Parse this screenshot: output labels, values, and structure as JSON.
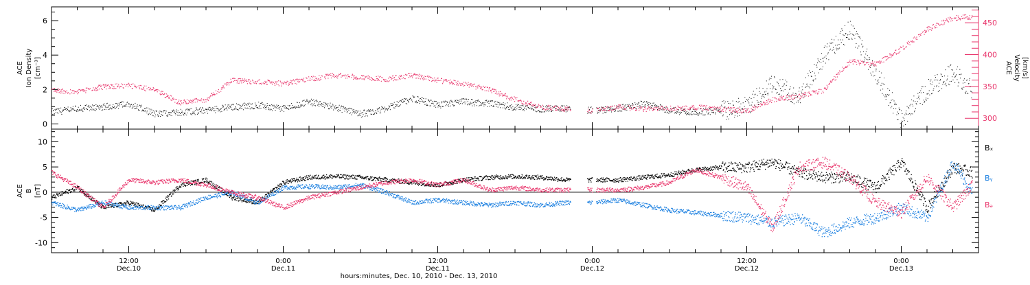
{
  "colors": {
    "density": "#000000",
    "velocity": "#e8336a",
    "bx": "#000000",
    "by": "#1a7fe0",
    "bz": "#e8336a",
    "axis": "#000000"
  },
  "xaxis": {
    "title": "hours:minutes, Dec. 10, 2010 - Dec. 13, 2010",
    "range_hours": [
      0,
      72
    ],
    "ticks": [
      {
        "hour": 6,
        "time": "12:00",
        "day": "Dec.10"
      },
      {
        "hour": 18,
        "time": "0:00",
        "day": "Dec.11"
      },
      {
        "hour": 30,
        "time": "12:00",
        "day": "Dec.11"
      },
      {
        "hour": 42,
        "time": "0:00",
        "day": "Dec.12"
      },
      {
        "hour": 54,
        "time": "12:00",
        "day": "Dec.12"
      },
      {
        "hour": 66,
        "time": "0:00",
        "day": "Dec.13"
      }
    ]
  },
  "chart_data": [
    {
      "type": "scatter",
      "panel": "top",
      "left_ylabel": [
        "ACE",
        "Ion Density",
        "[cm⁻³]"
      ],
      "right_ylabel": [
        "ACE",
        "Velocity",
        "[km/s]"
      ],
      "ylim_left": [
        -0.3,
        6.8
      ],
      "ylim_right": [
        283,
        475
      ],
      "left_ticks": [
        "0",
        "2",
        "4",
        "6"
      ],
      "right_ticks": [
        "300",
        "350",
        "400",
        "450"
      ],
      "data_gaps_hours": [
        [
          40.3,
          41.6
        ],
        [
          42.0,
          42.3
        ]
      ],
      "x_hours": [
        0,
        2,
        4,
        6,
        8,
        10,
        12,
        14,
        16,
        18,
        20,
        22,
        24,
        26,
        28,
        30,
        32,
        34,
        36,
        38,
        40,
        42,
        44,
        46,
        48,
        50,
        52,
        54,
        56,
        58,
        60,
        62,
        64,
        66,
        68,
        70,
        71.5
      ],
      "series": [
        {
          "key": "density",
          "axis": "left",
          "values": [
            0.7,
            0.9,
            1.0,
            1.2,
            0.6,
            0.7,
            0.8,
            1.0,
            1.1,
            0.9,
            1.3,
            1.0,
            0.6,
            0.9,
            1.5,
            1.1,
            1.3,
            1.2,
            1.0,
            0.9,
            0.9,
            0.8,
            0.9,
            1.2,
            0.8,
            0.7,
            0.8,
            1.0,
            2.5,
            1.5,
            4.0,
            5.5,
            3.0,
            0.3,
            2.0,
            3.0,
            2.0
          ]
        },
        {
          "key": "velocity",
          "axis": "right",
          "values": [
            345,
            342,
            350,
            352,
            345,
            325,
            330,
            360,
            358,
            355,
            362,
            368,
            365,
            362,
            368,
            360,
            355,
            345,
            330,
            318,
            315,
            312,
            318,
            315,
            316,
            318,
            315,
            312,
            330,
            335,
            345,
            390,
            385,
            410,
            440,
            458,
            460
          ]
        }
      ]
    },
    {
      "type": "scatter",
      "panel": "bottom",
      "left_ylabel": [
        "ACE",
        "B",
        "[nT]"
      ],
      "ylim": [
        -12,
        12.5
      ],
      "ticks": [
        "10",
        "5",
        "0",
        "-5",
        "-10"
      ],
      "zero_line": true,
      "legend_position": "right",
      "data_gaps_hours": [
        [
          40.3,
          41.6
        ],
        [
          42.0,
          42.3
        ]
      ],
      "x_hours": [
        0,
        2,
        4,
        6,
        8,
        10,
        12,
        14,
        16,
        18,
        20,
        22,
        24,
        26,
        28,
        30,
        32,
        34,
        36,
        38,
        40,
        42,
        44,
        46,
        48,
        50,
        52,
        54,
        56,
        58,
        60,
        62,
        64,
        66,
        68,
        70,
        71.5
      ],
      "series": [
        {
          "key": "bx",
          "label": "Bₓ",
          "values": [
            -1.0,
            1.0,
            -3.0,
            -2.0,
            -3.5,
            1.5,
            2.5,
            -1.0,
            -2.0,
            2.0,
            3.0,
            3.2,
            3.0,
            2.5,
            2.0,
            1.5,
            2.5,
            3.0,
            3.2,
            3.0,
            2.5,
            2.5,
            2.5,
            3.0,
            3.5,
            4.5,
            5.0,
            5.0,
            6.0,
            4.0,
            3.0,
            3.0,
            1.0,
            6.0,
            -3.0,
            5.0,
            4.0
          ]
        },
        {
          "key": "by",
          "label": "Bᵧ",
          "values": [
            -2.0,
            -3.5,
            -2.0,
            -3.0,
            -3.0,
            -3.0,
            -1.0,
            0.0,
            -2.0,
            1.0,
            1.2,
            1.0,
            1.5,
            0.0,
            -2.0,
            -1.5,
            -2.0,
            -2.5,
            -2.0,
            -2.5,
            -2.0,
            -2.0,
            -1.5,
            -2.5,
            -3.5,
            -4.0,
            -4.5,
            -5.0,
            -6.0,
            -5.0,
            -8.0,
            -6.0,
            -5.0,
            -3.0,
            -5.0,
            6.0,
            0.0
          ]
        },
        {
          "key": "bz",
          "label": "Bₔ",
          "values": [
            4.0,
            1.0,
            -3.0,
            2.5,
            2.0,
            2.5,
            1.5,
            0.0,
            -1.0,
            -3.0,
            -1.0,
            0.0,
            1.0,
            2.0,
            2.5,
            1.5,
            2.5,
            0.5,
            1.0,
            0.5,
            0.5,
            0.5,
            0.5,
            1.0,
            2.0,
            4.5,
            3.0,
            1.0,
            -7.0,
            5.0,
            6.0,
            3.0,
            -2.0,
            -4.0,
            3.0,
            -3.0,
            1.5
          ]
        }
      ]
    }
  ]
}
